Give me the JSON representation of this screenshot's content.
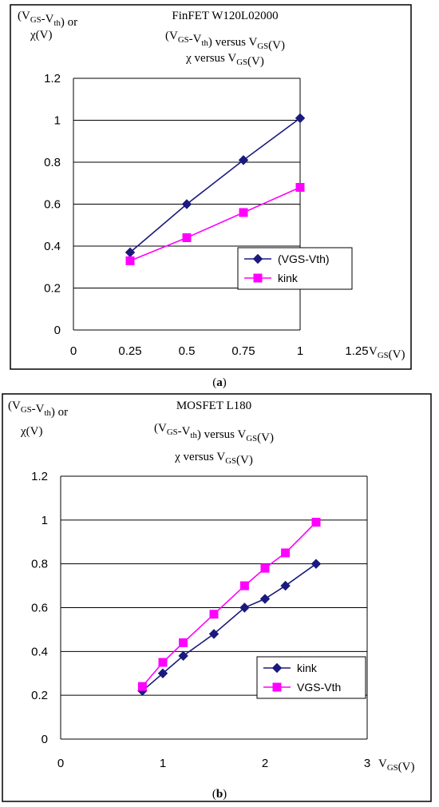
{
  "chart_data": [
    {
      "type": "line",
      "title": "FinFET W120L02000",
      "subtitle": [
        "(V_GS-V_th) versus V_GS(V)",
        "χ versus V_GS(V)"
      ],
      "ylabel": [
        "(V_GS-V_th) or",
        "χ(V)"
      ],
      "xlabel": "V_GS(V)",
      "caption": "a",
      "x_ticks": [
        "0",
        "0.25",
        "0.5",
        "0.75",
        "1",
        "1.25"
      ],
      "y_ticks": [
        "0",
        "0.2",
        "0.4",
        "0.6",
        "0.8",
        "1",
        "1.2"
      ],
      "xlim": [
        0,
        1.25
      ],
      "ylim": [
        0,
        1.2
      ],
      "grid": "horizontal",
      "legend_position": "right",
      "series": [
        {
          "name": "(VGS-Vth)",
          "color": "#1a1a7e",
          "marker": "diamond",
          "x": [
            0.25,
            0.5,
            0.75,
            1.0
          ],
          "y": [
            0.37,
            0.6,
            0.81,
            1.01
          ]
        },
        {
          "name": "kink",
          "color": "#ff00ff",
          "marker": "square",
          "x": [
            0.25,
            0.5,
            0.75,
            1.0
          ],
          "y": [
            0.33,
            0.44,
            0.56,
            0.68
          ]
        }
      ]
    },
    {
      "type": "line",
      "title": "MOSFET L180",
      "subtitle": [
        "(V_GS-V_th) versus V_GS(V)",
        "χ versus V_GS(V)"
      ],
      "ylabel": [
        "(V_GS-V_th) or",
        "χ(V)"
      ],
      "xlabel": "V_GS(V)",
      "caption": "b",
      "x_ticks": [
        "0",
        "1",
        "2",
        "3"
      ],
      "y_ticks": [
        "0",
        "0.2",
        "0.4",
        "0.6",
        "0.8",
        "1",
        "1.2"
      ],
      "xlim": [
        0,
        3
      ],
      "ylim": [
        0,
        1.2
      ],
      "grid": "horizontal",
      "legend_position": "right",
      "series": [
        {
          "name": "kink",
          "color": "#1a1a7e",
          "marker": "diamond",
          "x": [
            0.8,
            1.0,
            1.2,
            1.5,
            1.8,
            2.0,
            2.2,
            2.5
          ],
          "y": [
            0.22,
            0.3,
            0.38,
            0.48,
            0.6,
            0.64,
            0.7,
            0.8
          ]
        },
        {
          "name": "VGS-Vth",
          "color": "#ff00ff",
          "marker": "square",
          "x": [
            0.8,
            1.0,
            1.2,
            1.5,
            1.8,
            2.0,
            2.2,
            2.5
          ],
          "y": [
            0.24,
            0.35,
            0.44,
            0.57,
            0.7,
            0.78,
            0.85,
            0.99
          ]
        }
      ]
    }
  ]
}
